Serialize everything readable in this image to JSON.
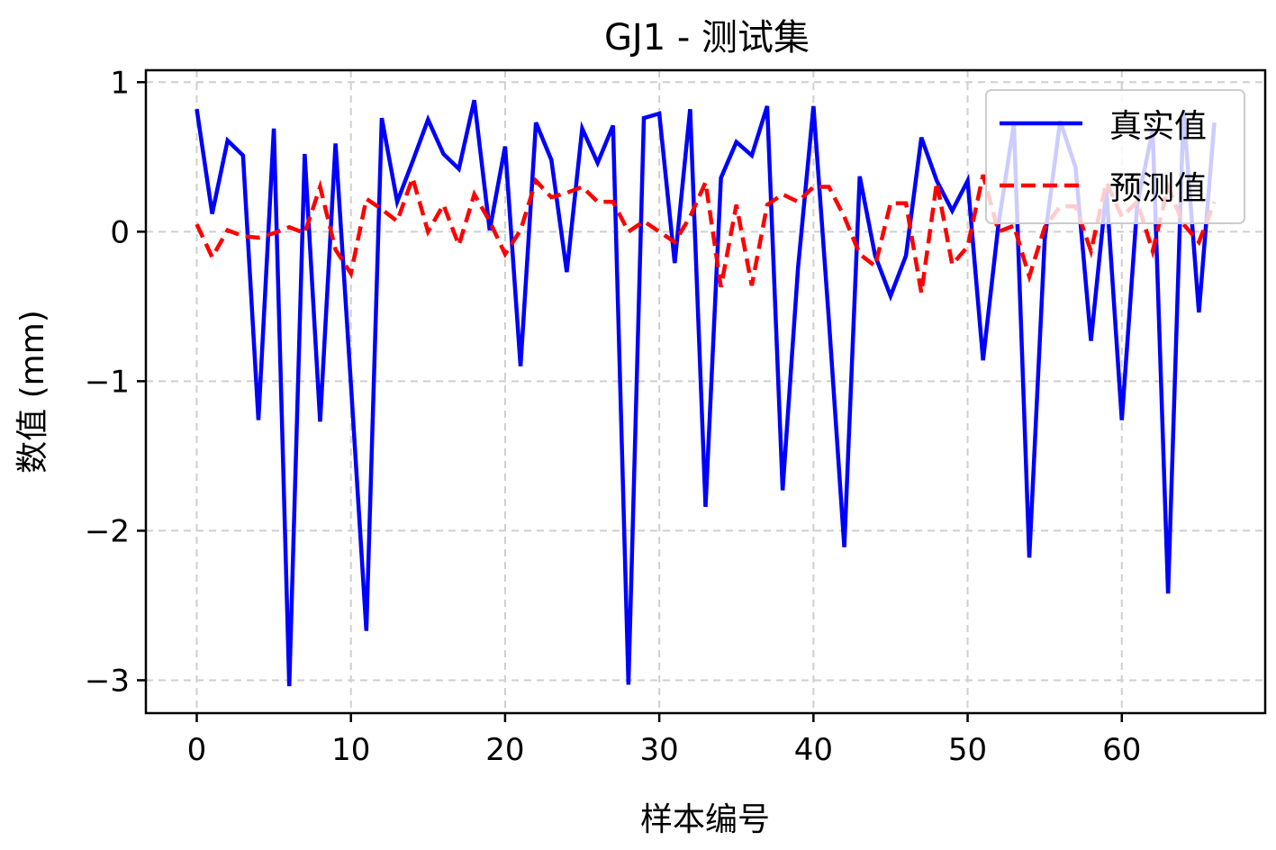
{
  "chart_data": {
    "type": "line",
    "title": "GJ1 - 测试集",
    "xlabel": "样本编号",
    "ylabel": "数值 (mm)",
    "xlim": [
      -3.3,
      69.3
    ],
    "ylim": [
      -3.22,
      1.08
    ],
    "xticks": [
      0,
      10,
      20,
      30,
      40,
      50,
      60
    ],
    "xtick_labels": [
      "0",
      "10",
      "20",
      "30",
      "40",
      "50",
      "60"
    ],
    "yticks": [
      1,
      0,
      -1,
      -2,
      -3
    ],
    "ytick_labels": [
      "1",
      "0",
      "−1",
      "−2",
      "−3"
    ],
    "grid": true,
    "legend_position": "top-right",
    "x": [
      0,
      1,
      2,
      3,
      4,
      5,
      6,
      7,
      8,
      9,
      10,
      11,
      12,
      13,
      14,
      15,
      16,
      17,
      18,
      19,
      20,
      21,
      22,
      23,
      24,
      25,
      26,
      27,
      28,
      29,
      30,
      31,
      32,
      33,
      34,
      35,
      36,
      37,
      38,
      39,
      40,
      41,
      42,
      43,
      44,
      45,
      46,
      47,
      48,
      49,
      50,
      51,
      52,
      53,
      54,
      55,
      56,
      57,
      58,
      59,
      60,
      61,
      62,
      63,
      64,
      65,
      66
    ],
    "series": [
      {
        "name": "真实值",
        "color": "#0000ff",
        "style": "solid",
        "values": [
          0.82,
          0.12,
          0.61,
          0.51,
          -1.26,
          0.69,
          -3.04,
          0.52,
          -1.27,
          0.59,
          -1.02,
          -2.67,
          0.76,
          0.2,
          0.47,
          0.75,
          0.52,
          0.42,
          0.88,
          0.01,
          0.57,
          -0.9,
          0.73,
          0.48,
          -0.27,
          0.69,
          0.46,
          0.71,
          -3.03,
          0.76,
          0.79,
          -0.21,
          0.82,
          -1.84,
          0.36,
          0.6,
          0.51,
          0.84,
          -1.73,
          -0.24,
          0.84,
          -0.59,
          -2.11,
          0.37,
          -0.16,
          -0.43,
          -0.16,
          0.63,
          0.34,
          0.14,
          0.34,
          -0.86,
          0.05,
          0.72,
          -2.18,
          -0.05,
          0.74,
          0.43,
          -0.73,
          0.28,
          -1.26,
          0.18,
          0.68,
          -2.42,
          0.81,
          -0.54,
          0.73
        ]
      },
      {
        "name": "预测值",
        "color": "#ff0000",
        "style": "dashed",
        "values": [
          0.05,
          -0.17,
          0.01,
          -0.03,
          -0.04,
          -0.01,
          0.03,
          -0.01,
          0.3,
          -0.12,
          -0.28,
          0.22,
          0.15,
          0.07,
          0.36,
          0.0,
          0.18,
          -0.09,
          0.25,
          0.07,
          -0.15,
          0.01,
          0.34,
          0.23,
          0.26,
          0.3,
          0.2,
          0.2,
          0.0,
          0.07,
          0.0,
          -0.07,
          0.1,
          0.33,
          -0.37,
          0.18,
          -0.36,
          0.18,
          0.25,
          0.2,
          0.3,
          0.3,
          0.1,
          -0.15,
          -0.23,
          0.19,
          0.19,
          -0.41,
          0.33,
          -0.22,
          -0.1,
          0.38,
          0.0,
          0.04,
          -0.3,
          0.03,
          0.17,
          0.17,
          -0.13,
          0.33,
          0.1,
          0.2,
          -0.13,
          0.3,
          0.05,
          -0.07,
          0.2
        ]
      }
    ]
  }
}
